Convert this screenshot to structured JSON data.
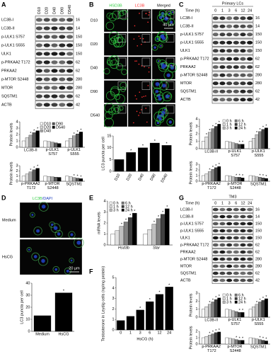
{
  "panels": [
    {
      "letter": "A",
      "columns": [
        "D10",
        "D20",
        "D40",
        "D90",
        "D540"
      ],
      "rows": [
        "LC3B-I",
        "LC3B-II",
        "p-ULK1 S757",
        "p-ULK1 S555",
        "ULK1",
        "p-PRKAA2 T172",
        "PRKAA2",
        "p-MTOR S2448",
        "MTOR",
        "SQSTM1",
        "ACTB"
      ],
      "mw": [
        16,
        14,
        150,
        150,
        150,
        62,
        62,
        280,
        280,
        62,
        42
      ],
      "charts": [
        {
          "type": "bar",
          "ylabel": "Protein levels",
          "legend": "top-center",
          "categories": [
            "LC3B-II",
            "p-ULK1 S757",
            "p-ULK1 S555"
          ],
          "series": [
            {
              "name": "D10",
              "color": "#ffffff",
              "values": [
                1,
                1,
                1
              ],
              "significance": [
                null,
                null,
                null
              ]
            },
            {
              "name": "D20",
              "color": "#d9d9d9",
              "values": [
                1.5,
                0.9,
                1.4
              ],
              "significance": [
                null,
                null,
                null
              ]
            },
            {
              "name": "D40",
              "color": "#a6a6a6",
              "values": [
                1.9,
                0.8,
                1.8
              ],
              "significance": [
                "*",
                null,
                "*"
              ]
            },
            {
              "name": "D90",
              "color": "#595959",
              "values": [
                2.3,
                0.7,
                2.1
              ],
              "significance": [
                "*",
                null,
                "*"
              ]
            },
            {
              "name": "D540",
              "color": "#000000",
              "values": [
                2.6,
                0.6,
                2.4
              ],
              "significance": [
                "*",
                null,
                "*"
              ]
            }
          ],
          "ylim": [
            0,
            4
          ],
          "yticks": [
            0,
            1,
            2,
            3,
            4
          ]
        },
        {
          "type": "bar",
          "ylabel": "Protein levels",
          "categories": [
            "p-PRKAA2 T172",
            "p-MTOR S2448",
            "SQSTM1"
          ],
          "series": [
            {
              "color": "#ffffff",
              "values": [
                1,
                1,
                1
              ],
              "significance": [
                null,
                null,
                null
              ]
            },
            {
              "color": "#d9d9d9",
              "values": [
                1.4,
                0.9,
                0.85
              ],
              "significance": [
                null,
                null,
                null
              ]
            },
            {
              "color": "#a6a6a6",
              "values": [
                1.8,
                0.85,
                0.7
              ],
              "significance": [
                "*",
                null,
                "*"
              ]
            },
            {
              "color": "#595959",
              "values": [
                2.2,
                0.8,
                0.6
              ],
              "significance": [
                "*",
                null,
                "*"
              ]
            },
            {
              "color": "#000000",
              "values": [
                2.5,
                0.75,
                0.5
              ],
              "significance": [
                "*",
                null,
                "*"
              ]
            }
          ],
          "ylim": [
            0,
            3
          ],
          "yticks": [
            0,
            1,
            2,
            3
          ]
        }
      ]
    },
    {
      "letter": "B",
      "channels": [
        "HSD3B",
        "LC3B",
        "Merged"
      ],
      "rows": [
        "D10",
        "D20",
        "D40",
        "D90",
        "D540"
      ],
      "scale_bar": "40 µm",
      "charts": [
        {
          "type": "bar",
          "ylabel": "LC3 puncta per cell",
          "category_rotation": -60,
          "categories": [
            "D10",
            "D20",
            "D40",
            "D90",
            "D540"
          ],
          "series": [
            {
              "color": "#000000",
              "values": [
                5,
                8,
                10,
                12,
                11
              ],
              "significance": [
                null,
                "*",
                "*",
                "*",
                "*"
              ]
            }
          ],
          "ylim": [
            0,
            15
          ],
          "yticks": [
            0,
            5,
            10,
            15
          ]
        }
      ]
    },
    {
      "letter": "C",
      "header": "Primary LCs",
      "time_label": "Time (h)",
      "columns": [
        0,
        1,
        3,
        6,
        12,
        24
      ],
      "rows": [
        "LC3B-I",
        "LC3B-II",
        "p-ULK1 S757",
        "p-ULK1 S555",
        "ULK1",
        "p-PRKAA2 T172",
        "PRKAA2",
        "p-MTOR S2448",
        "MTOR",
        "SQSTM1",
        "ACTB"
      ],
      "mw": [
        16,
        14,
        150,
        150,
        150,
        62,
        62,
        280,
        280,
        62,
        42
      ],
      "charts": [
        {
          "type": "bar",
          "ylabel": "Protein levels",
          "legend": "top-center",
          "categories": [
            "LC3B-II",
            "p-ULK1 S757",
            "p-ULK1 S555"
          ],
          "series": [
            {
              "name": "0 h",
              "color": "#ffffff",
              "values": [
                1,
                1,
                1
              ],
              "significance": [
                null,
                null,
                null
              ]
            },
            {
              "name": "1 h",
              "color": "#e0e0e0",
              "values": [
                1.6,
                0.9,
                1.4
              ],
              "significance": [
                "*",
                null,
                null
              ]
            },
            {
              "name": "3 h",
              "color": "#bfbfbf",
              "values": [
                2.2,
                0.8,
                1.9
              ],
              "significance": [
                "*",
                null,
                "*"
              ]
            },
            {
              "name": "6 h",
              "color": "#808080",
              "values": [
                2.7,
                0.7,
                2.3
              ],
              "significance": [
                "*",
                null,
                "*"
              ]
            },
            {
              "name": "12 h",
              "color": "#404040",
              "values": [
                3,
                0.6,
                2.6
              ],
              "significance": [
                "*",
                "*",
                "*"
              ]
            },
            {
              "name": "24 h",
              "color": "#000000",
              "values": [
                3.3,
                0.6,
                2.8
              ],
              "significance": [
                "*",
                "*",
                "*"
              ]
            }
          ],
          "ylim": [
            0,
            4
          ],
          "yticks": [
            0,
            1,
            2,
            3,
            4
          ]
        },
        {
          "type": "bar",
          "ylabel": "Protein levels",
          "categories": [
            "p-PRKAA2 T172",
            "p-MTOR S2448",
            "SQSTM1"
          ],
          "series": [
            {
              "color": "#ffffff",
              "values": [
                1,
                1,
                1
              ],
              "significance": [
                null,
                null,
                null
              ]
            },
            {
              "color": "#e0e0e0",
              "values": [
                1.3,
                0.9,
                0.9
              ],
              "significance": [
                null,
                null,
                null
              ]
            },
            {
              "color": "#bfbfbf",
              "values": [
                1.7,
                0.8,
                0.8
              ],
              "significance": [
                "*",
                null,
                null
              ]
            },
            {
              "color": "#808080",
              "values": [
                2.1,
                0.7,
                0.7
              ],
              "significance": [
                "*",
                "*",
                "*"
              ]
            },
            {
              "color": "#404040",
              "values": [
                2.4,
                0.7,
                0.6
              ],
              "significance": [
                "*",
                "*",
                "*"
              ]
            },
            {
              "color": "#000000",
              "values": [
                2.6,
                0.6,
                0.5
              ],
              "significance": [
                "*",
                "*",
                "*"
              ]
            }
          ],
          "ylim": [
            0,
            3
          ],
          "yticks": [
            0,
            1,
            2,
            3
          ]
        }
      ]
    },
    {
      "letter": "D",
      "stain": "LC3B",
      "counterstain": "/DAPI",
      "rows": [
        "Medium",
        "HsCG"
      ],
      "scale_bar": "20 µm",
      "charts": [
        {
          "type": "bar",
          "ylabel": "LC3 puncta per cell",
          "categories": [
            "Medium",
            "HsCG"
          ],
          "series": [
            {
              "color": "#000000",
              "values": [
                13,
                32
              ],
              "significance": [
                null,
                "*"
              ]
            }
          ],
          "ylim": [
            0,
            40
          ],
          "yticks": [
            0,
            10,
            20,
            30,
            40
          ]
        }
      ]
    },
    {
      "letter": "E",
      "charts": [
        {
          "type": "bar",
          "ylabel": "mRNA levels",
          "legend": "top-left",
          "category_style": "italic",
          "categories": [
            "Hsd3b",
            "Star"
          ],
          "series": [
            {
              "name": "0 h",
              "color": "#ffffff",
              "values": [
                1,
                1
              ],
              "significance": [
                null,
                null
              ]
            },
            {
              "name": "1 h",
              "color": "#e0e0e0",
              "values": [
                1.3,
                1.4
              ],
              "significance": [
                null,
                null
              ]
            },
            {
              "name": "3 h",
              "color": "#bfbfbf",
              "values": [
                1.7,
                1.9
              ],
              "significance": [
                "*",
                "*"
              ]
            },
            {
              "name": "6 h",
              "color": "#808080",
              "values": [
                2.1,
                2.4
              ],
              "significance": [
                "*",
                "*"
              ]
            },
            {
              "name": "12 h",
              "color": "#404040",
              "values": [
                2.5,
                2.8
              ],
              "significance": [
                "*",
                "*"
              ]
            },
            {
              "name": "24 h",
              "color": "#000000",
              "values": [
                2.9,
                3.3
              ],
              "significance": [
                "*",
                "*"
              ]
            }
          ],
          "ylim": [
            0,
            4
          ],
          "yticks": [
            0,
            1,
            2,
            3,
            4
          ]
        }
      ]
    },
    {
      "letter": "F",
      "charts": [
        {
          "type": "bar",
          "ylabel": "Testosterone in Leydig cells (ng/mg protein)",
          "xlabel": "HsCG (h)",
          "categories": [
            0,
            1,
            3,
            6,
            12,
            24
          ],
          "series": [
            {
              "color": "#000000",
              "values": [
                0.9,
                1.3,
                1.9,
                2.7,
                3.4,
                4.1
              ],
              "significance": [
                null,
                null,
                "*",
                "*",
                "*",
                "*"
              ]
            }
          ],
          "ylim": [
            0,
            5
          ],
          "yticks": [
            0,
            1,
            2,
            3,
            4,
            5
          ]
        }
      ]
    },
    {
      "letter": "G",
      "header": "TM3",
      "time_label": "Time (h)",
      "columns": [
        0,
        1,
        3,
        6,
        12,
        24
      ],
      "rows": [
        "LC3B-I",
        "LC3B-II",
        "p-ULK1 S757",
        "p-ULK1 S555",
        "ULK1",
        "p-PRKAA2 T172",
        "PRKAA2",
        "p-MTOR S2448",
        "MTOR",
        "SQSTM1",
        "ACTB"
      ],
      "mw": [
        16,
        14,
        150,
        150,
        150,
        62,
        62,
        280,
        280,
        62,
        42
      ],
      "charts": [
        {
          "type": "bar",
          "ylabel": "Protein levels",
          "legend": "top-center",
          "categories": [
            "LC3B-II",
            "p-ULK1 S757",
            "p-ULK1 S555"
          ],
          "series": [
            {
              "name": "0 h",
              "color": "#ffffff",
              "values": [
                1,
                1,
                1
              ],
              "significance": [
                null,
                null,
                null
              ]
            },
            {
              "name": "1 h",
              "color": "#e0e0e0",
              "values": [
                1.3,
                0.9,
                1.3
              ],
              "significance": [
                null,
                null,
                null
              ]
            },
            {
              "name": "3 h",
              "color": "#bfbfbf",
              "values": [
                1.6,
                0.8,
                1.6
              ],
              "significance": [
                "*",
                null,
                "*"
              ]
            },
            {
              "name": "6 h",
              "color": "#808080",
              "values": [
                1.9,
                0.7,
                1.9
              ],
              "significance": [
                "*",
                null,
                "*"
              ]
            },
            {
              "name": "12 h",
              "color": "#404040",
              "values": [
                2.2,
                0.6,
                2.1
              ],
              "significance": [
                "*",
                "*",
                "*"
              ]
            },
            {
              "name": "24 h",
              "color": "#000000",
              "values": [
                2.4,
                0.6,
                2.3
              ],
              "significance": [
                "*",
                "*",
                "*"
              ]
            }
          ],
          "ylim": [
            0,
            3
          ],
          "yticks": [
            0,
            1,
            2,
            3
          ]
        },
        {
          "type": "bar",
          "ylabel": "Protein levels",
          "categories": [
            "p-PRKAA2 T172",
            "p-MTOR S2448",
            "SQSTM1"
          ],
          "series": [
            {
              "color": "#ffffff",
              "values": [
                1,
                1,
                1
              ],
              "significance": [
                null,
                null,
                null
              ]
            },
            {
              "color": "#e0e0e0",
              "values": [
                1.2,
                0.9,
                0.9
              ],
              "significance": [
                null,
                null,
                null
              ]
            },
            {
              "color": "#bfbfbf",
              "values": [
                1.4,
                0.8,
                0.8
              ],
              "significance": [
                "*",
                null,
                null
              ]
            },
            {
              "color": "#808080",
              "values": [
                1.6,
                0.7,
                0.7
              ],
              "significance": [
                "*",
                "*",
                "*"
              ]
            },
            {
              "color": "#404040",
              "values": [
                1.8,
                0.6,
                0.6
              ],
              "significance": [
                "*",
                "*",
                "*"
              ]
            },
            {
              "color": "#000000",
              "values": [
                1.9,
                0.6,
                0.5
              ],
              "significance": [
                "*",
                "*",
                "*"
              ]
            }
          ],
          "ylim": [
            0,
            2
          ],
          "yticks": [
            0,
            1,
            2
          ]
        }
      ]
    }
  ]
}
